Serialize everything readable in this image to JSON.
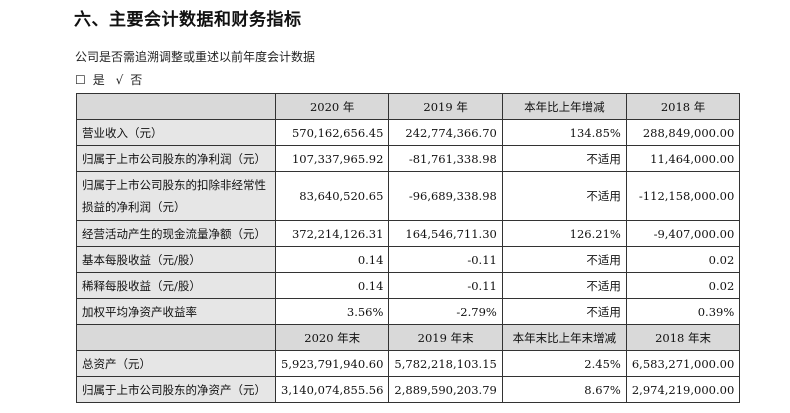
{
  "title": "六、主要会计数据和财务指标",
  "question": "公司是否需追溯调整或重述以前年度会计数据",
  "options": {
    "yes_box": "☐",
    "yes": "是",
    "no_box": "√",
    "no": "否"
  },
  "header1": [
    "",
    "2020 年",
    "2019 年",
    "本年比上年增减",
    "2018 年"
  ],
  "rows1": [
    [
      "营业收入（元）",
      "570,162,656.45",
      "242,774,366.70",
      "134.85%",
      "288,849,000.00"
    ],
    [
      "归属于上市公司股东的净利润（元）",
      "107,337,965.92",
      "-81,761,338.98",
      "不适用",
      "11,464,000.00"
    ],
    [
      "归属于上市公司股东的扣除非经常性损益的净利润（元）",
      "83,640,520.65",
      "-96,689,338.98",
      "不适用",
      "-112,158,000.00"
    ],
    [
      "经营活动产生的现金流量净额（元）",
      "372,214,126.31",
      "164,546,711.30",
      "126.21%",
      "-9,407,000.00"
    ],
    [
      "基本每股收益（元/股）",
      "0.14",
      "-0.11",
      "不适用",
      "0.02"
    ],
    [
      "稀释每股收益（元/股）",
      "0.14",
      "-0.11",
      "不适用",
      "0.02"
    ],
    [
      "加权平均净资产收益率",
      "3.56%",
      "-2.79%",
      "不适用",
      "0.39%"
    ]
  ],
  "header2": [
    "",
    "2020 年末",
    "2019 年末",
    "本年末比上年末增减",
    "2018 年末"
  ],
  "rows2": [
    [
      "总资产（元）",
      "5,923,791,940.60",
      "5,782,218,103.15",
      "2.45%",
      "6,583,271,000.00"
    ],
    [
      "归属于上市公司股东的净资产（元）",
      "3,140,074,855.56",
      "2,889,590,203.79",
      "8.67%",
      "2,974,219,000.00"
    ]
  ]
}
